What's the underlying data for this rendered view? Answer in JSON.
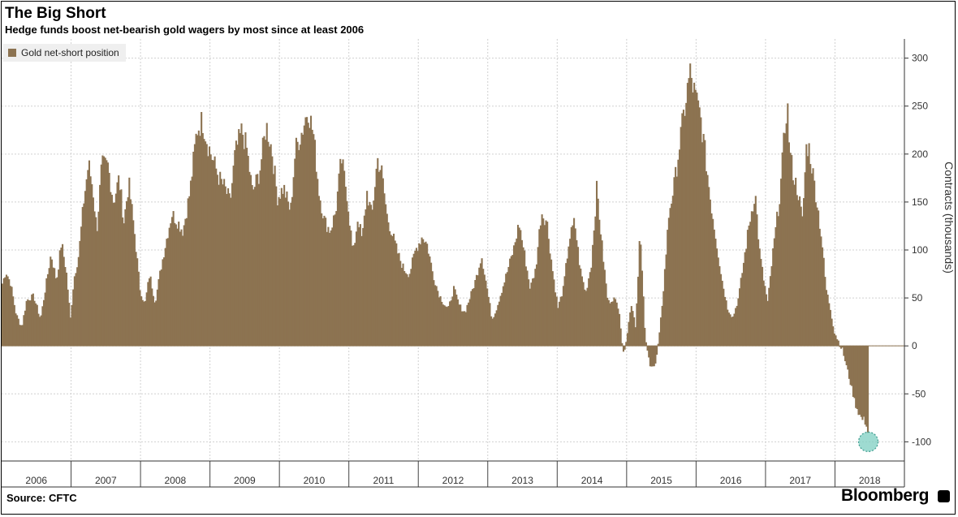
{
  "chart_data": {
    "type": "bar",
    "title": "The Big Short",
    "subtitle": "Hedge funds boost net-bearish gold wagers by most since at least 2006",
    "ylabel": "Contracts (thousands)",
    "xlabel": "",
    "ylim": [
      -120,
      320
    ],
    "yticks": [
      300,
      250,
      200,
      150,
      100,
      50,
      0,
      -50,
      -100
    ],
    "xticks": [
      "2006",
      "2007",
      "2008",
      "2009",
      "2010",
      "2011",
      "2012",
      "2013",
      "2014",
      "2015",
      "2016",
      "2017",
      "2018"
    ],
    "x_start_year": 2006,
    "grid": true,
    "legend_position": "top-left",
    "series": [
      {
        "name": "Gold net-short position",
        "color": "#8c7351",
        "keypoints": [
          [
            2006.0,
            65
          ],
          [
            2006.05,
            78
          ],
          [
            2006.12,
            65
          ],
          [
            2006.2,
            32
          ],
          [
            2006.28,
            20
          ],
          [
            2006.35,
            48
          ],
          [
            2006.45,
            52
          ],
          [
            2006.55,
            28
          ],
          [
            2006.62,
            60
          ],
          [
            2006.7,
            96
          ],
          [
            2006.78,
            68
          ],
          [
            2006.85,
            108
          ],
          [
            2006.92,
            78
          ],
          [
            2006.98,
            28
          ],
          [
            2007.03,
            70
          ],
          [
            2007.1,
            95
          ],
          [
            2007.17,
            150
          ],
          [
            2007.24,
            190
          ],
          [
            2007.3,
            165
          ],
          [
            2007.36,
            120
          ],
          [
            2007.43,
            188
          ],
          [
            2007.52,
            188
          ],
          [
            2007.6,
            150
          ],
          [
            2007.68,
            175
          ],
          [
            2007.75,
            130
          ],
          [
            2007.82,
            170
          ],
          [
            2007.9,
            120
          ],
          [
            2007.98,
            60
          ],
          [
            2008.05,
            42
          ],
          [
            2008.12,
            75
          ],
          [
            2008.2,
            45
          ],
          [
            2008.28,
            80
          ],
          [
            2008.36,
            110
          ],
          [
            2008.44,
            138
          ],
          [
            2008.52,
            130
          ],
          [
            2008.6,
            120
          ],
          [
            2008.7,
            160
          ],
          [
            2008.8,
            225
          ],
          [
            2008.88,
            235
          ],
          [
            2008.96,
            210
          ],
          [
            2009.05,
            190
          ],
          [
            2009.12,
            175
          ],
          [
            2009.2,
            165
          ],
          [
            2009.28,
            150
          ],
          [
            2009.35,
            200
          ],
          [
            2009.45,
            225
          ],
          [
            2009.52,
            205
          ],
          [
            2009.6,
            160
          ],
          [
            2009.7,
            180
          ],
          [
            2009.8,
            230
          ],
          [
            2009.88,
            205
          ],
          [
            2009.96,
            155
          ],
          [
            2010.05,
            165
          ],
          [
            2010.15,
            140
          ],
          [
            2010.22,
            205
          ],
          [
            2010.32,
            225
          ],
          [
            2010.4,
            248
          ],
          [
            2010.48,
            220
          ],
          [
            2010.56,
            160
          ],
          [
            2010.64,
            130
          ],
          [
            2010.72,
            120
          ],
          [
            2010.8,
            140
          ],
          [
            2010.88,
            195
          ],
          [
            2010.96,
            160
          ],
          [
            2011.05,
            95
          ],
          [
            2011.12,
            135
          ],
          [
            2011.18,
            110
          ],
          [
            2011.25,
            160
          ],
          [
            2011.32,
            135
          ],
          [
            2011.4,
            195
          ],
          [
            2011.46,
            182
          ],
          [
            2011.54,
            135
          ],
          [
            2011.62,
            115
          ],
          [
            2011.7,
            95
          ],
          [
            2011.78,
            80
          ],
          [
            2011.86,
            75
          ],
          [
            2011.95,
            100
          ],
          [
            2012.05,
            115
          ],
          [
            2012.12,
            105
          ],
          [
            2012.2,
            75
          ],
          [
            2012.28,
            55
          ],
          [
            2012.35,
            45
          ],
          [
            2012.42,
            38
          ],
          [
            2012.5,
            60
          ],
          [
            2012.58,
            42
          ],
          [
            2012.66,
            35
          ],
          [
            2012.74,
            52
          ],
          [
            2012.82,
            70
          ],
          [
            2012.9,
            95
          ],
          [
            2012.98,
            60
          ],
          [
            2013.05,
            28
          ],
          [
            2013.12,
            40
          ],
          [
            2013.2,
            60
          ],
          [
            2013.28,
            80
          ],
          [
            2013.36,
            100
          ],
          [
            2013.44,
            128
          ],
          [
            2013.52,
            95
          ],
          [
            2013.6,
            60
          ],
          [
            2013.68,
            80
          ],
          [
            2013.76,
            140
          ],
          [
            2013.84,
            130
          ],
          [
            2013.92,
            80
          ],
          [
            2014.0,
            40
          ],
          [
            2014.08,
            60
          ],
          [
            2014.16,
            110
          ],
          [
            2014.24,
            130
          ],
          [
            2014.32,
            80
          ],
          [
            2014.4,
            55
          ],
          [
            2014.48,
            85
          ],
          [
            2014.56,
            165
          ],
          [
            2014.64,
            100
          ],
          [
            2014.72,
            45
          ],
          [
            2014.8,
            50
          ],
          [
            2014.88,
            40
          ],
          [
            2014.94,
            -10
          ],
          [
            2015.0,
            15
          ],
          [
            2015.06,
            45
          ],
          [
            2015.12,
            20
          ],
          [
            2015.18,
            120
          ],
          [
            2015.22,
            65
          ],
          [
            2015.26,
            5
          ],
          [
            2015.32,
            -18
          ],
          [
            2015.4,
            -22
          ],
          [
            2015.46,
            10
          ],
          [
            2015.52,
            60
          ],
          [
            2015.6,
            140
          ],
          [
            2015.68,
            170
          ],
          [
            2015.76,
            215
          ],
          [
            2015.84,
            255
          ],
          [
            2015.9,
            285
          ],
          [
            2015.96,
            265
          ],
          [
            2016.05,
            240
          ],
          [
            2016.12,
            200
          ],
          [
            2016.2,
            150
          ],
          [
            2016.28,
            110
          ],
          [
            2016.36,
            70
          ],
          [
            2016.44,
            40
          ],
          [
            2016.52,
            30
          ],
          [
            2016.6,
            50
          ],
          [
            2016.68,
            90
          ],
          [
            2016.76,
            130
          ],
          [
            2016.84,
            160
          ],
          [
            2016.9,
            100
          ],
          [
            2016.96,
            70
          ],
          [
            2017.02,
            45
          ],
          [
            2017.1,
            100
          ],
          [
            2017.2,
            160
          ],
          [
            2017.26,
            220
          ],
          [
            2017.3,
            255
          ],
          [
            2017.34,
            200
          ],
          [
            2017.4,
            175
          ],
          [
            2017.46,
            160
          ],
          [
            2017.52,
            130
          ],
          [
            2017.58,
            210
          ],
          [
            2017.62,
            205
          ],
          [
            2017.68,
            175
          ],
          [
            2017.74,
            145
          ],
          [
            2017.8,
            110
          ],
          [
            2017.86,
            60
          ],
          [
            2017.92,
            40
          ],
          [
            2017.98,
            15
          ],
          [
            2018.05,
            3
          ],
          [
            2018.1,
            -5
          ],
          [
            2018.2,
            -35
          ],
          [
            2018.28,
            -60
          ],
          [
            2018.36,
            -75
          ],
          [
            2018.44,
            -80
          ],
          [
            2018.48,
            -100
          ]
        ]
      }
    ],
    "annotation": {
      "x": 2018.48,
      "y": -100,
      "shape": "circle",
      "color": "#7ecfc1"
    }
  },
  "footer": {
    "source": "Source: CFTC",
    "brand": "Bloomberg"
  }
}
